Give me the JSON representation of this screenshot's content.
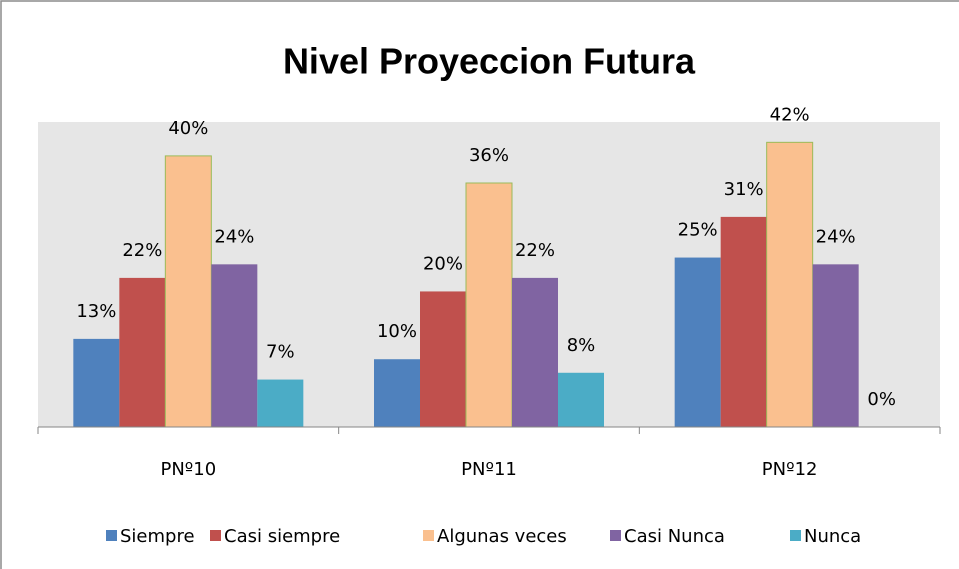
{
  "chart_data": {
    "type": "bar",
    "title": "Nivel Proyeccion Futura",
    "categories": [
      "PNº10",
      "PNº11",
      "PNº12"
    ],
    "series": [
      {
        "name": "Siempre",
        "color": "#4f81bd",
        "values": [
          13,
          10,
          25
        ],
        "value_labels": [
          "13%",
          "10%",
          "25%"
        ]
      },
      {
        "name": "Casi siempre",
        "color": "#c0504d",
        "values": [
          22,
          20,
          31
        ],
        "value_labels": [
          "22%",
          "20%",
          "31%"
        ]
      },
      {
        "name": "Algunas veces",
        "color": "#fac08f",
        "values": [
          40,
          36,
          42
        ],
        "value_labels": [
          "40%",
          "36%",
          "42%"
        ]
      },
      {
        "name": "Casi Nunca",
        "color": "#8064a2",
        "values": [
          24,
          22,
          24
        ],
        "value_labels": [
          "24%",
          "22%",
          "24%"
        ]
      },
      {
        "name": "Nunca",
        "color": "#4bacc6",
        "values": [
          7,
          8,
          0
        ],
        "value_labels": [
          "7%",
          "8%",
          "0%"
        ]
      }
    ],
    "ylim": [
      0,
      45
    ],
    "legend": "bottom"
  }
}
